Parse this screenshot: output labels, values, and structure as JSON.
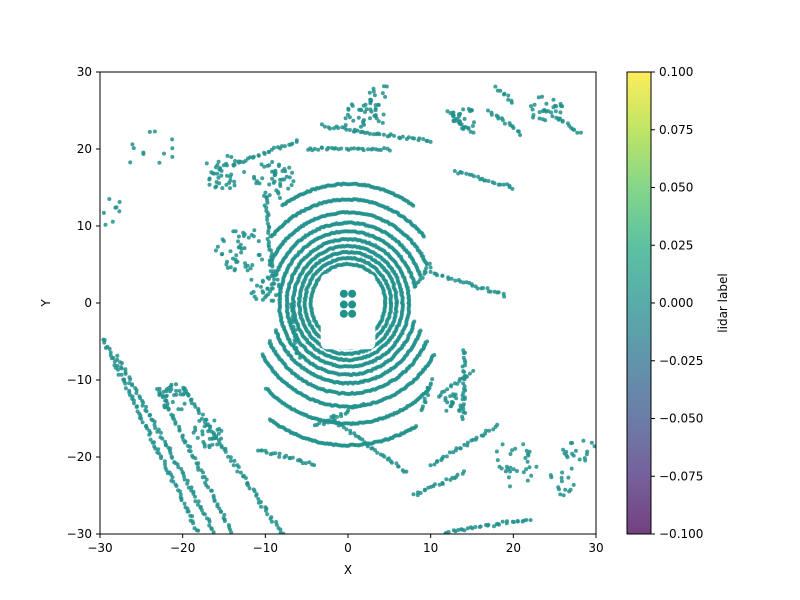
{
  "chart_data": {
    "type": "scatter",
    "title": "",
    "xlabel": "X",
    "ylabel": "Y",
    "xlim": [
      -30,
      30
    ],
    "ylim": [
      -30,
      30
    ],
    "xticks": [
      -30,
      -20,
      -10,
      0,
      10,
      20,
      30
    ],
    "yticks": [
      -30,
      -20,
      -10,
      0,
      10,
      20,
      30
    ],
    "xtick_labels": [
      "−30",
      "−20",
      "−10",
      "0",
      "10",
      "20",
      "30"
    ],
    "ytick_labels": [
      "−30",
      "−20",
      "−10",
      "0",
      "10",
      "20",
      "30"
    ],
    "grid": false,
    "point_color": "#21918c",
    "point_value": 0.0,
    "rings": [
      {
        "r": 4.5,
        "start": 0,
        "end": 360
      },
      {
        "r": 5.2,
        "start": 0,
        "end": 360
      },
      {
        "r": 5.9,
        "start": 0,
        "end": 360
      },
      {
        "r": 6.6,
        "start": 0,
        "end": 360
      },
      {
        "r": 7.4,
        "start": 0,
        "end": 360
      },
      {
        "r": 8.3,
        "start": 15,
        "end": 345
      },
      {
        "r": 9.3,
        "start": 20,
        "end": 160
      },
      {
        "r": 9.3,
        "start": 200,
        "end": 340
      },
      {
        "r": 10.5,
        "start": 25,
        "end": 155
      },
      {
        "r": 10.5,
        "start": 205,
        "end": 335
      },
      {
        "r": 12.0,
        "start": 40,
        "end": 140
      },
      {
        "r": 12.0,
        "start": 210,
        "end": 330
      },
      {
        "r": 13.8,
        "start": 55,
        "end": 125
      },
      {
        "r": 14.0,
        "start": 225,
        "end": 315
      },
      {
        "r": 16.5,
        "start": 235,
        "end": 300
      }
    ],
    "lines": [
      {
        "from": [
          -30,
          -4
        ],
        "to": [
          -18,
          -30
        ]
      },
      {
        "from": [
          -28,
          -7
        ],
        "to": [
          -16,
          -30
        ]
      },
      {
        "from": [
          -23,
          -11
        ],
        "to": [
          -14,
          -30
        ]
      },
      {
        "from": [
          -20,
          -11
        ],
        "to": [
          -8,
          -30
        ]
      },
      {
        "from": [
          -5,
          20
        ],
        "to": [
          5,
          20
        ]
      },
      {
        "from": [
          -3,
          23
        ],
        "to": [
          10,
          21
        ]
      },
      {
        "from": [
          -14,
          18
        ],
        "to": [
          -6,
          21
        ]
      },
      {
        "from": [
          -10,
          14
        ],
        "to": [
          -9,
          2
        ]
      },
      {
        "from": [
          -7,
          0
        ],
        "to": [
          -6,
          -7
        ]
      },
      {
        "from": [
          9,
          -14
        ],
        "to": [
          10,
          -10
        ]
      },
      {
        "from": [
          11,
          -12
        ],
        "to": [
          15,
          -9
        ]
      },
      {
        "from": [
          14,
          -6
        ],
        "to": [
          14,
          -15
        ]
      },
      {
        "from": [
          10,
          4
        ],
        "to": [
          19,
          1
        ]
      },
      {
        "from": [
          8,
          2
        ],
        "to": [
          10,
          5
        ]
      },
      {
        "from": [
          10,
          -21
        ],
        "to": [
          18,
          -16
        ]
      },
      {
        "from": [
          8,
          -25
        ],
        "to": [
          14,
          -22
        ]
      },
      {
        "from": [
          11,
          -30
        ],
        "to": [
          22,
          -28
        ]
      },
      {
        "from": [
          13,
          17
        ],
        "to": [
          20,
          15
        ]
      },
      {
        "from": [
          12,
          25
        ],
        "to": [
          15,
          22
        ]
      },
      {
        "from": [
          17,
          25
        ],
        "to": [
          21,
          22
        ]
      },
      {
        "from": [
          24,
          25
        ],
        "to": [
          28,
          22
        ]
      },
      {
        "from": [
          18,
          28
        ],
        "to": [
          20,
          26
        ]
      },
      {
        "from": [
          -2,
          -15
        ],
        "to": [
          7,
          -22
        ]
      },
      {
        "from": [
          -4,
          -16
        ],
        "to": [
          2,
          -13
        ]
      },
      {
        "from": [
          -11,
          -19
        ],
        "to": [
          -4,
          -21
        ]
      }
    ],
    "clusters": [
      {
        "center": [
          -15,
          17
        ],
        "radius": 2.5,
        "count": 40
      },
      {
        "center": [
          -9,
          16
        ],
        "radius": 2.5,
        "count": 45
      },
      {
        "center": [
          -13,
          7
        ],
        "radius": 3.0,
        "count": 45
      },
      {
        "center": [
          -10,
          2
        ],
        "radius": 2.0,
        "count": 30
      },
      {
        "center": [
          2,
          24
        ],
        "radius": 2.5,
        "count": 40
      },
      {
        "center": [
          14,
          24
        ],
        "radius": 1.5,
        "count": 25
      },
      {
        "center": [
          24,
          25
        ],
        "radius": 2.0,
        "count": 25
      },
      {
        "center": [
          -21,
          -12
        ],
        "radius": 2.0,
        "count": 30
      },
      {
        "center": [
          -17,
          -17
        ],
        "radius": 2.0,
        "count": 30
      },
      {
        "center": [
          13,
          -13
        ],
        "radius": 1.5,
        "count": 20
      },
      {
        "center": [
          20,
          -21
        ],
        "radius": 3.0,
        "count": 30
      },
      {
        "center": [
          28,
          -19
        ],
        "radius": 2.0,
        "count": 18
      },
      {
        "center": [
          26,
          -23
        ],
        "radius": 2.0,
        "count": 15
      },
      {
        "center": [
          -24,
          20
        ],
        "radius": 3.0,
        "count": 12
      },
      {
        "center": [
          -29,
          12
        ],
        "radius": 2.0,
        "count": 10
      },
      {
        "center": [
          4,
          27
        ],
        "radius": 1.5,
        "count": 12
      }
    ]
  },
  "colorbar": {
    "label": "lidar label",
    "ticks": [
      "0.100",
      "0.075",
      "0.050",
      "0.025",
      "0.000",
      "−0.025",
      "−0.050",
      "−0.075",
      "−0.100"
    ],
    "colormap": [
      "#440154",
      "#472c7a",
      "#3b518b",
      "#2c718e",
      "#21908d",
      "#27ad81",
      "#5cc863",
      "#aadc32",
      "#fde725"
    ],
    "alpha": 0.75
  }
}
